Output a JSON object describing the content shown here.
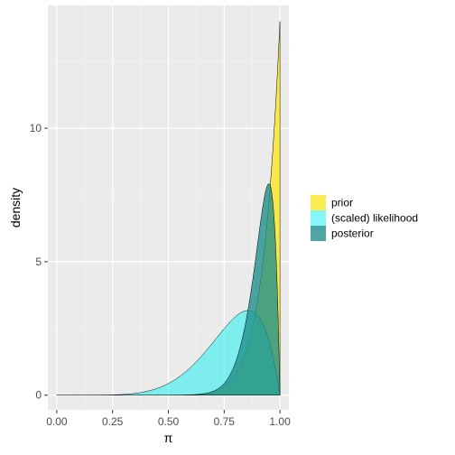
{
  "chart_data": {
    "type": "area",
    "xlabel": "π",
    "ylabel": "density",
    "xlim": [
      -0.04,
      1.04
    ],
    "ylim": [
      -0.55,
      14.6
    ],
    "x_ticks": [
      0,
      0.25,
      0.5,
      0.75,
      1
    ],
    "x_tick_labels": [
      "0.00",
      "0.25",
      "0.50",
      "0.75",
      "1.00"
    ],
    "y_ticks": [
      0,
      5,
      10
    ],
    "y_tick_labels": [
      "0",
      "5",
      "10"
    ],
    "grid": true,
    "legend_position": "right",
    "series": [
      {
        "name": "prior",
        "distribution": "beta",
        "params": [
          14,
          1
        ],
        "scale": 1,
        "color": "#FDE725",
        "opacity": 0.8
      },
      {
        "name": "(scaled) likelihood",
        "distribution": "beta",
        "params": [
          7,
          2
        ],
        "scale": 1,
        "color": "#22EEEE",
        "opacity": 0.55
      },
      {
        "name": "posterior",
        "distribution": "beta",
        "params": [
          20,
          2
        ],
        "scale": 1,
        "color": "#21908C",
        "opacity": 0.8
      }
    ]
  }
}
